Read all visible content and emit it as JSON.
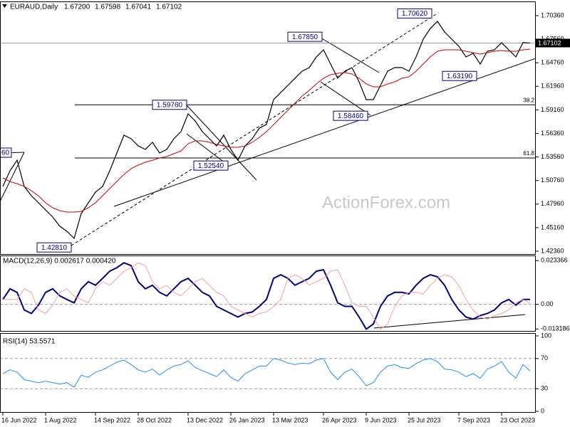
{
  "chart_data": [
    {
      "type": "line",
      "title": "EURAUD,Daily",
      "quote": [
        {
          "value": 1.672,
          "label": "1.67200"
        },
        {
          "value": 1.67598,
          "label": "1.67598"
        },
        {
          "value": 1.67041,
          "label": "1.67041"
        },
        {
          "value": 1.67102,
          "label": "1.67102"
        }
      ],
      "watermark": "ActionForex.com",
      "categories": [
        "16 Jun 2022",
        null,
        null,
        null,
        null,
        null,
        "1 Aug 2022",
        null,
        null,
        null,
        null,
        null,
        null,
        "14 Sep 2022",
        null,
        null,
        null,
        null,
        null,
        "28 Oct 2022",
        null,
        null,
        null,
        null,
        null,
        null,
        "13 Dec 2022",
        null,
        null,
        null,
        null,
        null,
        "26 Jan 2023",
        null,
        null,
        null,
        null,
        null,
        "13 Mar 2023",
        null,
        null,
        null,
        null,
        null,
        null,
        "26 Apr 2023",
        null,
        null,
        null,
        null,
        null,
        "9 Jun 2023",
        null,
        null,
        null,
        null,
        null,
        "25 Jul 2023",
        null,
        null,
        null,
        null,
        null,
        null,
        "7 Sep 2023",
        null,
        null,
        null,
        null,
        null,
        "23 Oct 2023",
        null,
        null,
        null,
        null
      ],
      "series": [
        {
          "color": "#000000",
          "values": [
            1.5006,
            1.5192,
            1.5319,
            1.5006,
            1.4896,
            1.4811,
            1.4726,
            1.4642,
            1.4532,
            1.4473,
            1.4388,
            1.4684,
            1.4811,
            1.4938,
            1.5006,
            1.5192,
            1.5403,
            1.5615,
            1.5572,
            1.5488,
            1.5446,
            1.553,
            1.5403,
            1.5446,
            1.5572,
            1.5657,
            1.5869,
            1.5784,
            1.5657,
            1.5572,
            1.5488,
            1.5615,
            1.5446,
            1.5319,
            1.5488,
            1.5572,
            1.5699,
            1.5742,
            1.6038,
            1.6122,
            1.6207,
            1.6292,
            1.6376,
            1.6418,
            1.6545,
            1.663,
            1.6461,
            1.6292,
            1.6376,
            1.6418,
            1.6249,
            1.6038,
            1.6038,
            1.6207,
            1.6376,
            1.6418,
            1.6418,
            1.6376,
            1.6545,
            1.6757,
            1.6884,
            1.6968,
            1.6841,
            1.6757,
            1.6672,
            1.6545,
            1.6588,
            1.6461,
            1.6613,
            1.663,
            1.6715,
            1.663,
            1.6545,
            1.6715,
            1.671
          ]
        },
        {
          "color": "#d00000",
          "values": [
            1.5107,
            1.5065,
            1.5039,
            1.5006,
            1.4955,
            1.4895,
            1.4811,
            1.4752,
            1.4718,
            1.4701,
            1.4701,
            1.4709,
            1.4752,
            1.4811,
            1.4895,
            1.498,
            1.5065,
            1.5149,
            1.5217,
            1.5259,
            1.5293,
            1.5318,
            1.5344,
            1.5361,
            1.5395,
            1.5428,
            1.5513,
            1.5547,
            1.5547,
            1.553,
            1.5505,
            1.5488,
            1.5471,
            1.5471,
            1.5488,
            1.553,
            1.5589,
            1.5657,
            1.5741,
            1.5826,
            1.5911,
            1.5995,
            1.608,
            1.6148,
            1.6224,
            1.6291,
            1.6334,
            1.6351,
            1.6359,
            1.6342,
            1.6291,
            1.6224,
            1.619,
            1.619,
            1.6224,
            1.6249,
            1.6291,
            1.6308,
            1.6376,
            1.6461,
            1.6545,
            1.6613,
            1.663,
            1.663,
            1.663,
            1.6613,
            1.6596,
            1.6579,
            1.6596,
            1.6613,
            1.6621,
            1.6613,
            1.6613,
            1.663,
            1.6638
          ]
        }
      ],
      "ylim": [
        1.4202,
        1.7205
      ],
      "yticks": [
        {
          "value": 1.4236,
          "label": "1.42360"
        },
        {
          "value": 1.4516,
          "label": "1.45160"
        },
        {
          "value": 1.4796,
          "label": "1.47960"
        },
        {
          "value": 1.5076,
          "label": "1.50760"
        },
        {
          "value": 1.5356,
          "label": "1.53560"
        },
        {
          "value": 1.5636,
          "label": "1.56360"
        },
        {
          "value": 1.5916,
          "label": "1.59160"
        },
        {
          "value": 1.6196,
          "label": "1.61960"
        },
        {
          "value": 1.6476,
          "label": "1.64760"
        },
        {
          "value": 1.6756,
          "label": "1.67560"
        },
        {
          "value": 1.7036,
          "label": "1.70360"
        }
      ],
      "last_price": {
        "value": 1.67102,
        "label": "1.67102"
      },
      "annotations": [
        {
          "value": 1.7062,
          "label": "1.70620"
        },
        {
          "value": 1.6785,
          "label": "1.67850"
        },
        {
          "value": 1.5976,
          "label": "1.59760"
        },
        {
          "value": 1.5254,
          "label": "1.52540"
        },
        {
          "value": 1.5846,
          "label": "1.58460"
        },
        {
          "value": 1.6319,
          "label": "1.63190"
        },
        {
          "value": 1.4281,
          "label": "1.42810"
        }
      ],
      "clipped_label": "60",
      "fib_levels": [
        {
          "ratio": 38.2,
          "price": 1.5976
        },
        {
          "ratio": 61.8,
          "price": 1.5344
        }
      ]
    },
    {
      "type": "line",
      "title": "MACD(12,26,9) 0.002617 0.000420",
      "series": [
        {
          "color": "#000080",
          "values": [
            0.0026,
            0.0083,
            0.0064,
            -0.003,
            -0.0049,
            -0.0004,
            0.0064,
            0.0083,
            0.0045,
            0.0026,
            0.0008,
            0.0083,
            0.0121,
            0.0102,
            0.0139,
            0.0177,
            0.0196,
            0.0222,
            0.0207,
            0.0121,
            0.0083,
            0.0102,
            0.0064,
            0.0045,
            0.0083,
            0.0121,
            0.0139,
            0.0102,
            0.0064,
            0.0045,
            -0.0011,
            -0.003,
            -0.0049,
            -0.0068,
            -0.0049,
            -0.0041,
            -0.0011,
            0.0026,
            0.0139,
            0.0158,
            0.0139,
            0.0102,
            0.0121,
            0.0139,
            0.0177,
            0.0185,
            0.0102,
            0.0008,
            -0.0011,
            -0.0011,
            -0.0068,
            -0.0132,
            -0.0105,
            -0.0011,
            0.0045,
            0.0064,
            0.0064,
            0.0056,
            0.0102,
            0.0139,
            0.0158,
            0.0147,
            0.0102,
            0.0026,
            -0.003,
            -0.0068,
            -0.0079,
            -0.006,
            -0.0049,
            -0.003,
            0.0008,
            0.0026,
            -0.0004,
            0.0026,
            0.002617
          ]
        },
        {
          "color": "#f4a0a0",
          "values": [
            0.0026,
            0.0026,
            0.0026,
            0.0083,
            0.0064,
            -0.003,
            -0.0049,
            -0.0004,
            0.0064,
            0.0083,
            0.0045,
            0.0026,
            0.0008,
            0.0083,
            0.0121,
            0.0102,
            0.0139,
            0.0177,
            0.0196,
            0.0222,
            0.0207,
            0.0121,
            0.0083,
            0.0102,
            0.0064,
            0.0045,
            0.0083,
            0.0121,
            0.0139,
            0.0102,
            0.0064,
            0.0045,
            -0.0011,
            -0.003,
            -0.0049,
            -0.0068,
            -0.0049,
            -0.0041,
            -0.0011,
            0.0026,
            0.0139,
            0.0158,
            0.0139,
            0.0102,
            0.0121,
            0.0139,
            0.0177,
            0.0185,
            0.0102,
            0.0008,
            -0.0011,
            -0.0011,
            -0.0068,
            -0.0132,
            -0.0105,
            -0.0011,
            0.0045,
            0.0064,
            0.0064,
            0.0056,
            0.0102,
            0.0139,
            0.0158,
            0.0147,
            0.0102,
            0.0026,
            -0.003,
            -0.0068,
            -0.0079,
            -0.006,
            -0.0049,
            -0.003,
            0.0008,
            0.0026,
            0.00042
          ]
        }
      ],
      "ylim": [
        -0.0142,
        0.0261
      ],
      "yticks": [
        -0.013186,
        {
          "value": 0,
          "label": "0.00"
        },
        0.023366
      ],
      "zero_line": true
    },
    {
      "type": "line",
      "title": "RSI(14) 53.5571",
      "series": [
        {
          "color": "#1e90ff",
          "values": [
            50,
            55,
            52,
            42,
            40,
            38,
            40,
            38,
            36,
            38,
            32,
            48,
            45,
            52,
            55,
            60,
            65,
            68,
            62,
            55,
            52,
            56,
            48,
            55,
            60,
            62,
            67,
            58,
            54,
            50,
            46,
            55,
            45,
            40,
            50,
            55,
            60,
            60,
            70,
            68,
            64,
            62,
            64,
            63,
            68,
            70,
            52,
            42,
            52,
            56,
            46,
            34,
            38,
            52,
            60,
            62,
            58,
            57,
            63,
            68,
            70,
            66,
            56,
            55,
            52,
            46,
            50,
            44,
            56,
            60,
            66,
            52,
            44,
            62,
            53.5571
          ]
        }
      ],
      "ylim": [
        0,
        100
      ],
      "yticks": [
        0,
        30,
        70,
        100
      ],
      "grid": true
    }
  ]
}
